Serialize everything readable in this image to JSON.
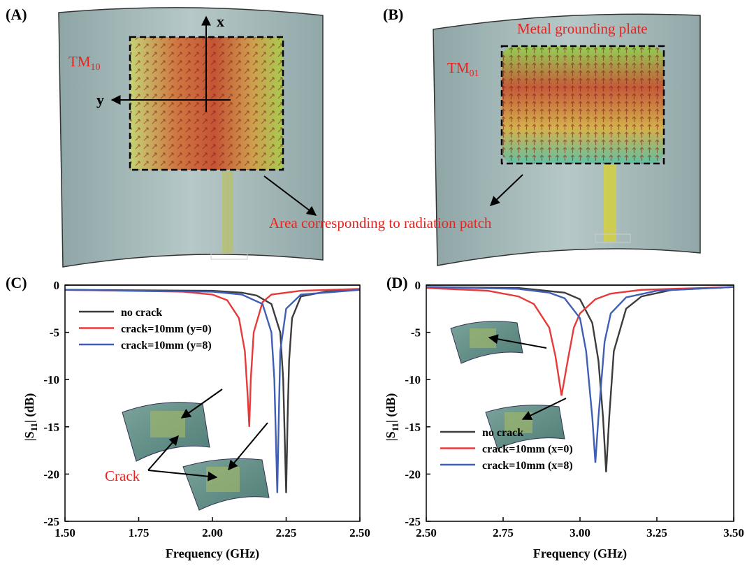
{
  "panels": {
    "a": {
      "label": "(A)",
      "axis_x": "x",
      "axis_y": "y",
      "mode": {
        "base": "TM",
        "subscript": "10"
      }
    },
    "b": {
      "label": "(B)",
      "plate_label": "Metal grounding plate",
      "mode": {
        "base": "TM",
        "subscript": "01"
      },
      "area_label": "Area corresponding to radiation patch"
    },
    "c": {
      "label": "(C)",
      "crack_label": "Crack"
    },
    "d": {
      "label": "(D)"
    }
  },
  "chart_data": [
    {
      "type": "line",
      "x_label": "Frequency (GHz)",
      "y_label": {
        "prefix": "|S",
        "subscript": "11",
        "suffix": "| (dB)"
      },
      "xlim": [
        1.5,
        2.5
      ],
      "ylim": [
        -25,
        0
      ],
      "xticks": [
        {
          "value": 1.5,
          "label": "1.50"
        },
        {
          "value": 1.75,
          "label": "1.75"
        },
        {
          "value": 2.0,
          "label": "2.00"
        },
        {
          "value": 2.25,
          "label": "2.25"
        },
        {
          "value": 2.5,
          "label": "2.50"
        }
      ],
      "yticks": [
        0,
        -5,
        -10,
        -15,
        -20,
        -25
      ],
      "legend": "top-left",
      "series": [
        {
          "name": "no crack",
          "color": "#3c3c3c",
          "x": [
            1.5,
            2.0,
            2.1,
            2.15,
            2.2,
            2.23,
            2.24,
            2.245,
            2.25,
            2.255,
            2.26,
            2.27,
            2.3,
            2.4,
            2.5
          ],
          "values": [
            -0.5,
            -0.6,
            -0.8,
            -1.1,
            -2.0,
            -5,
            -10,
            -16,
            -22,
            -14,
            -8,
            -3.5,
            -1.2,
            -0.6,
            -0.5
          ]
        },
        {
          "name": "crack=10mm (y=0)",
          "color": "#e8393a",
          "x": [
            1.5,
            1.9,
            2.0,
            2.05,
            2.09,
            2.11,
            2.12,
            2.125,
            2.13,
            2.14,
            2.17,
            2.2,
            2.3,
            2.5
          ],
          "values": [
            -0.5,
            -0.7,
            -1.0,
            -1.6,
            -3.5,
            -7,
            -12,
            -15,
            -10,
            -5,
            -1.8,
            -1.0,
            -0.6,
            -0.4
          ]
        },
        {
          "name": "crack=10mm (y=8)",
          "color": "#3f5fb5",
          "x": [
            1.5,
            2.0,
            2.1,
            2.17,
            2.2,
            2.21,
            2.215,
            2.22,
            2.225,
            2.23,
            2.25,
            2.3,
            2.5
          ],
          "values": [
            -0.5,
            -0.7,
            -1.0,
            -2.0,
            -5,
            -10,
            -16,
            -22,
            -14,
            -7,
            -2.5,
            -1.0,
            -0.5
          ]
        }
      ]
    },
    {
      "type": "line",
      "x_label": "Frequency (GHz)",
      "y_label": {
        "prefix": "|S",
        "subscript": "11",
        "suffix": "| (dB)"
      },
      "xlim": [
        2.5,
        3.5
      ],
      "ylim": [
        -25,
        0
      ],
      "xticks": [
        {
          "value": 2.5,
          "label": "2.50"
        },
        {
          "value": 2.75,
          "label": "2.75"
        },
        {
          "value": 3.0,
          "label": "3.00"
        },
        {
          "value": 3.25,
          "label": "3.25"
        },
        {
          "value": 3.5,
          "label": "3.50"
        }
      ],
      "yticks": [
        0,
        -5,
        -10,
        -15,
        -20,
        -25
      ],
      "legend": "bottom-left",
      "series": [
        {
          "name": "no crack",
          "color": "#3c3c3c",
          "x": [
            2.5,
            2.8,
            2.95,
            3.0,
            3.04,
            3.06,
            3.075,
            3.085,
            3.095,
            3.11,
            3.15,
            3.2,
            3.3,
            3.5
          ],
          "values": [
            -0.2,
            -0.3,
            -0.8,
            -1.5,
            -4,
            -8,
            -14,
            -19.8,
            -14,
            -7,
            -2.5,
            -1.2,
            -0.5,
            -0.2
          ]
        },
        {
          "name": "crack=10mm (x=0)",
          "color": "#e8393a",
          "x": [
            2.5,
            2.7,
            2.8,
            2.85,
            2.9,
            2.92,
            2.94,
            2.96,
            2.98,
            3.0,
            3.05,
            3.1,
            3.2,
            3.5
          ],
          "values": [
            -0.3,
            -0.6,
            -1.2,
            -2.0,
            -4.5,
            -7.5,
            -11.7,
            -8,
            -4.5,
            -3,
            -1.5,
            -0.9,
            -0.5,
            -0.2
          ]
        },
        {
          "name": "crack=10mm (x=8)",
          "color": "#3f5fb5",
          "x": [
            2.5,
            2.8,
            2.9,
            2.95,
            3.0,
            3.02,
            3.04,
            3.05,
            3.06,
            3.08,
            3.1,
            3.15,
            3.25,
            3.5
          ],
          "values": [
            -0.2,
            -0.4,
            -0.8,
            -1.4,
            -3.5,
            -7,
            -14,
            -18.8,
            -14,
            -6,
            -3,
            -1.3,
            -0.6,
            -0.2
          ]
        }
      ]
    }
  ]
}
